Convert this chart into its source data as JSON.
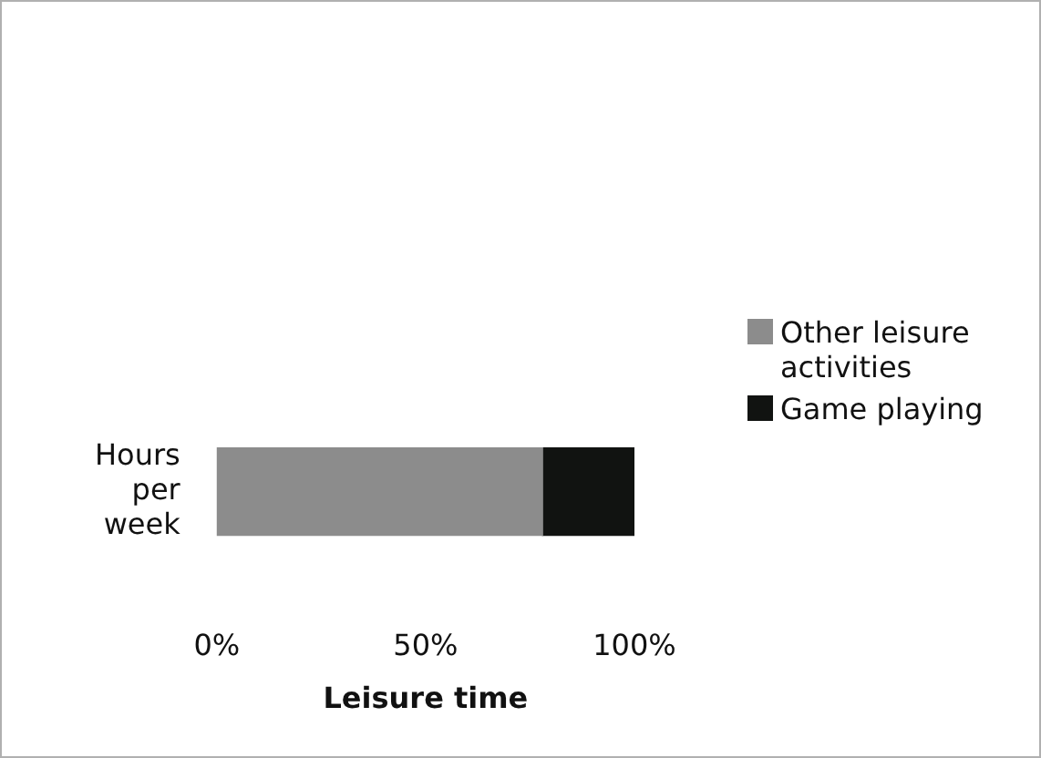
{
  "chart_data": {
    "type": "bar",
    "orientation": "horizontal",
    "stacked": true,
    "xlabel": "Leisure time",
    "categories": [
      "Hours per week"
    ],
    "series": [
      {
        "name": "Other leisure activities",
        "color": "#8c8c8c",
        "values": [
          78
        ]
      },
      {
        "name": "Game playing",
        "color": "#111311",
        "values": [
          22
        ]
      }
    ],
    "xlim": [
      0,
      100
    ],
    "xticks": [
      {
        "value": 0,
        "label": "0%"
      },
      {
        "value": 50,
        "label": "50%"
      },
      {
        "value": 100,
        "label": "100%"
      }
    ],
    "grid": false,
    "legend": "right"
  }
}
